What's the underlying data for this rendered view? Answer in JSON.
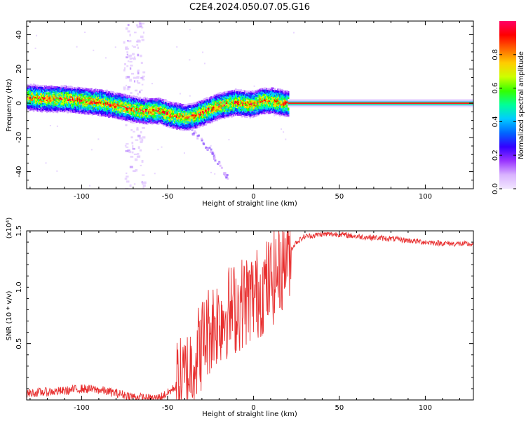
{
  "figure": {
    "title": "C2E4.2024.050.07.05.G16"
  },
  "colorbar": {
    "label": "Normalized spectral amplitude",
    "range": [
      0.0,
      1.0
    ],
    "tick_labels": [
      "0.0",
      "0.2",
      "0.4",
      "0.6",
      "0.8"
    ],
    "tick_values": [
      0.0,
      0.2,
      0.4,
      0.6,
      0.8
    ],
    "colors": [
      "#f2e6ff",
      "#d9b3ff",
      "#9933ff",
      "#3300ff",
      "#0066ff",
      "#00ccff",
      "#00ff99",
      "#33ff00",
      "#ccff00",
      "#ffcc00",
      "#ff6600",
      "#ff0000",
      "#ff0066"
    ]
  },
  "chart_data": [
    {
      "type": "heatmap",
      "xlabel": "Height of straight line (km)",
      "ylabel": "Frequency (Hz)",
      "xlim": [
        -132,
        128
      ],
      "ylim": [
        -50,
        48
      ],
      "x_ticks": [
        -100,
        -50,
        0,
        50,
        100
      ],
      "x_tick_labels": [
        "-100",
        "-50",
        "0",
        "50",
        "100"
      ],
      "y_ticks": [
        -40,
        -20,
        0,
        20,
        40
      ],
      "y_tick_labels": [
        "-40",
        "-20",
        "0",
        "20",
        "40"
      ],
      "ridge": {
        "x": [
          -132,
          -120,
          -110,
          -100,
          -90,
          -80,
          -75,
          -70,
          -65,
          -60,
          -55,
          -50,
          -45,
          -40,
          -35,
          -30,
          -25,
          -20,
          -15,
          -10,
          -5,
          0,
          5,
          10,
          15,
          20,
          128
        ],
        "y": [
          4,
          3,
          3,
          2,
          1,
          -1,
          -2,
          -3,
          -4,
          -4,
          -4,
          -6,
          -7,
          -8,
          -7,
          -5,
          -3,
          -1,
          0,
          1,
          0,
          0,
          2,
          2,
          1,
          0,
          0
        ]
      },
      "steady_line": {
        "x_start": 20,
        "x_end": 128,
        "y": 0
      },
      "faint_branch": {
        "x": [
          -40,
          -35,
          -30,
          -25,
          -20,
          -15
        ],
        "y": [
          -12,
          -17,
          -22,
          -28,
          -36,
          -44
        ]
      },
      "faint_column": {
        "x": -70,
        "y_range": [
          -50,
          48
        ]
      }
    },
    {
      "type": "line",
      "xlabel": "Height of straight line (km)",
      "ylabel": "SNR (10 * v/v)",
      "multiplier": "(x10⁴)",
      "xlim": [
        -132,
        128
      ],
      "ylim": [
        0,
        1.5
      ],
      "x_ticks": [
        -100,
        -50,
        0,
        50,
        100
      ],
      "x_tick_labels": [
        "-100",
        "-50",
        "0",
        "50",
        "100"
      ],
      "y_ticks": [
        0.5,
        1.0,
        1.5
      ],
      "y_tick_labels": [
        "0.5",
        "1.0",
        "1.5"
      ],
      "series_color": "#e83030",
      "envelope": {
        "x": [
          -132,
          -110,
          -100,
          -90,
          -80,
          -70,
          -60,
          -55,
          -50,
          -45,
          -40,
          -35,
          -30,
          -25,
          -20,
          -15,
          -10,
          -5,
          0,
          5,
          10,
          15,
          20,
          25,
          30,
          40,
          50,
          60,
          80,
          100,
          110,
          128
        ],
        "y": [
          0.06,
          0.08,
          0.1,
          0.09,
          0.06,
          0.03,
          0.01,
          0.02,
          0.06,
          0.12,
          0.18,
          0.35,
          0.5,
          0.65,
          0.72,
          0.78,
          0.82,
          0.88,
          0.92,
          0.98,
          1.05,
          1.15,
          1.3,
          1.4,
          1.45,
          1.47,
          1.47,
          1.45,
          1.43,
          1.4,
          1.39,
          1.38
        ]
      }
    }
  ]
}
